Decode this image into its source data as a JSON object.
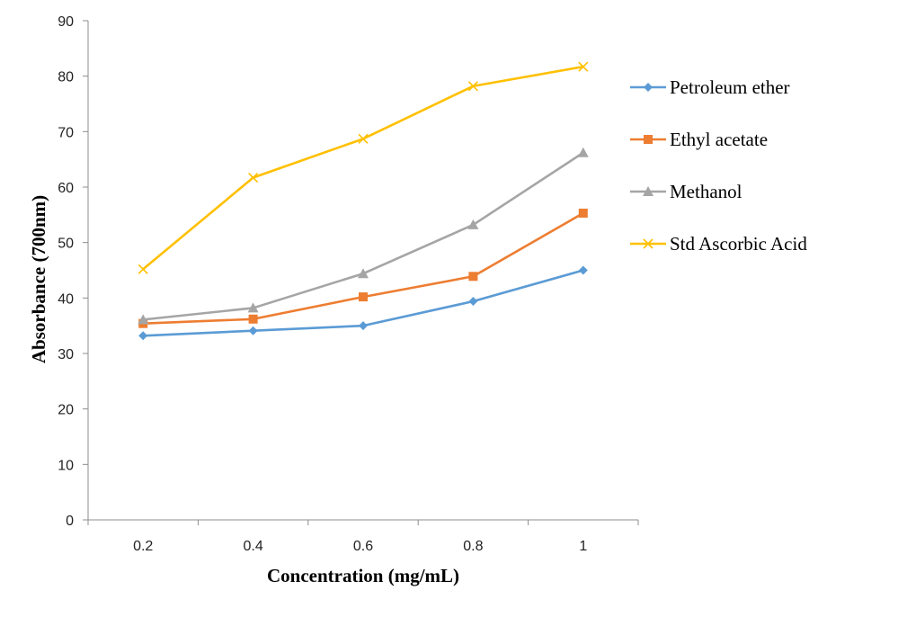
{
  "chart_data": {
    "type": "line",
    "title": "",
    "xlabel": "Concentration (mg/mL)",
    "ylabel": "Absorbance (700nm)",
    "categories": [
      "0.2",
      "0.4",
      "0.6",
      "0.8",
      "1"
    ],
    "ylim": [
      0,
      90
    ],
    "yticks": [
      "0",
      "10",
      "20",
      "30",
      "40",
      "50",
      "60",
      "70",
      "80",
      "90"
    ],
    "grid": false,
    "legend_position": "right",
    "series": [
      {
        "name": "Petroleum ether",
        "values": [
          33.2,
          34.1,
          35.0,
          39.4,
          45.0
        ],
        "color": "#5B9BD5",
        "marker": "diamond"
      },
      {
        "name": "Ethyl acetate",
        "values": [
          35.4,
          36.2,
          40.2,
          43.9,
          55.3
        ],
        "color": "#ED7D31",
        "marker": "square"
      },
      {
        "name": "Methanol",
        "values": [
          36.1,
          38.2,
          44.4,
          53.2,
          66.2
        ],
        "color": "#A5A5A5",
        "marker": "triangle"
      },
      {
        "name": "Std Ascorbic Acid",
        "values": [
          45.2,
          61.7,
          68.7,
          78.2,
          81.7
        ],
        "color": "#FFC000",
        "marker": "x"
      }
    ]
  }
}
